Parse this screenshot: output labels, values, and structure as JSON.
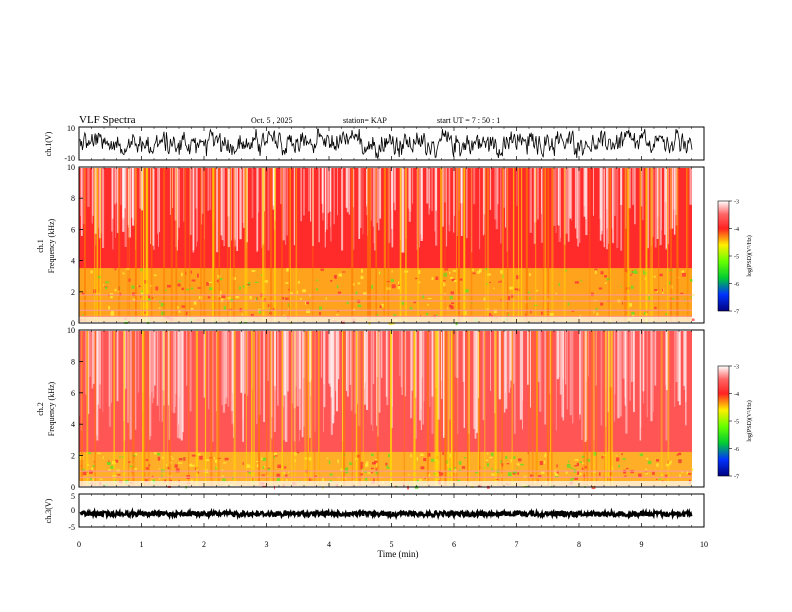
{
  "header": {
    "title": "VLF Spectra",
    "date": "Oct. 5 , 2025",
    "station": "station= KAP",
    "start_time": "start  UT  =   7 : 50 : 1"
  },
  "colors": {
    "background": "#ffffff",
    "axis": "#000000",
    "spectro_bg": "#ff2a2a",
    "low_band": "#ffcc1a"
  },
  "chart_data": [
    {
      "id": "ch1_waveform",
      "type": "line",
      "ylabel": "ch.1(V)",
      "ylim": [
        -10,
        10
      ],
      "yticks": [
        "10",
        "-10"
      ],
      "xlim": [
        0,
        10
      ],
      "description_values": "noisy waveform oscillating between about -10 and 10 V"
    },
    {
      "id": "ch1_spectrogram",
      "type": "heatmap",
      "ylabel": "ch.1\nFrequency  (kHz)",
      "ylim": [
        0,
        10
      ],
      "yticks": [
        "0",
        "2",
        "4",
        "6",
        "8",
        "10"
      ],
      "xlim": [
        0,
        10
      ],
      "colorbar": {
        "label": "log(PSD)(V²/Hz)",
        "range": [
          -7,
          -3
        ],
        "ticks": [
          "-3",
          "-4",
          "-5",
          "-6",
          "-7"
        ]
      }
    },
    {
      "id": "ch2_spectrogram",
      "type": "heatmap",
      "ylabel": "ch.2\nFrequency  (kHz)",
      "ylim": [
        0,
        10
      ],
      "yticks": [
        "0",
        "2",
        "4",
        "6",
        "8",
        "10"
      ],
      "xlim": [
        0,
        10
      ],
      "colorbar": {
        "label": "log(PSD)(V²/Hz)",
        "range": [
          -7,
          -3
        ],
        "ticks": [
          "-3",
          "-4",
          "-5",
          "-6",
          "-7"
        ]
      }
    },
    {
      "id": "ch3_waveform",
      "type": "line",
      "ylabel": "ch.3(V)",
      "ylim": [
        -5,
        5
      ],
      "yticks": [
        "5",
        "0",
        "-5"
      ],
      "xlim": [
        0,
        10
      ],
      "values": [
        -1,
        -1
      ]
    }
  ],
  "xaxis": {
    "label": "Time  (min)",
    "ticks": [
      "0",
      "1",
      "2",
      "3",
      "4",
      "5",
      "6",
      "7",
      "8",
      "9",
      "10"
    ]
  }
}
